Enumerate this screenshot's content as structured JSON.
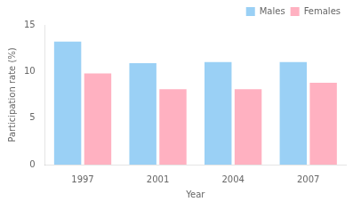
{
  "chart_data": {
    "type": "bar",
    "categories": [
      "1997",
      "2001",
      "2004",
      "2007"
    ],
    "series": [
      {
        "name": "Males",
        "values": [
          13.2,
          10.9,
          11.0,
          11.0
        ]
      },
      {
        "name": "Females",
        "values": [
          9.8,
          8.1,
          8.1,
          8.8
        ]
      }
    ],
    "ylabel": "Participation rate (%)",
    "xlabel": "Year",
    "ylim": [
      0,
      15
    ],
    "yticks": [
      0,
      5,
      10,
      15
    ],
    "legend": "upper right",
    "grid": false
  }
}
